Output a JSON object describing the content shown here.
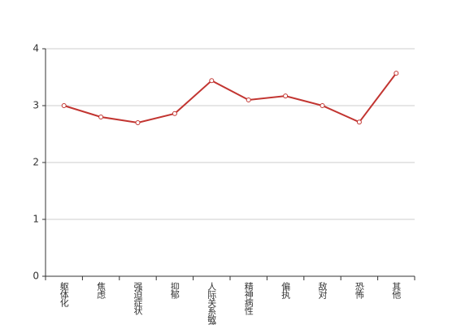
{
  "chart_data": {
    "type": "line",
    "categories": [
      "躯体化",
      "焦虑",
      "强迫症状",
      "抑郁",
      "人际关系敏感",
      "精神病性",
      "偏执",
      "敌对",
      "恐怖",
      "其他"
    ],
    "series": [
      {
        "color": "#c23531",
        "values": [
          3.0,
          2.8,
          2.7,
          2.86,
          3.44,
          3.1,
          3.17,
          3.0,
          2.71,
          3.57
        ]
      }
    ],
    "ylim": [
      0,
      4
    ],
    "yticks": [
      0,
      1,
      2,
      3,
      4
    ],
    "grid": true
  }
}
